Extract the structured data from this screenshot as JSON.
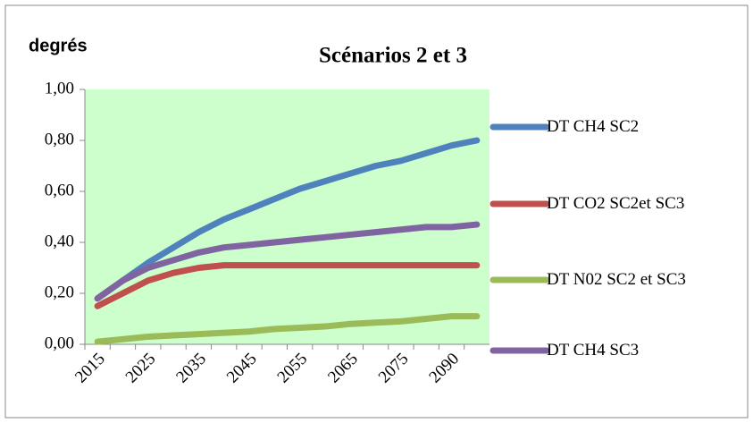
{
  "chart_data": {
    "type": "line",
    "title": "Scénarios 2 et 3",
    "y_label": "degrés",
    "categories": [
      "2015",
      null,
      "2025",
      null,
      "2035",
      null,
      "2045",
      null,
      "2055",
      null,
      "2065",
      null,
      "2075",
      null,
      "2090",
      null
    ],
    "series": [
      {
        "name": "DT CH4 SC2",
        "color": "#4f81bd",
        "values": [
          0.18,
          0.25,
          0.32,
          0.38,
          0.44,
          0.49,
          0.53,
          0.57,
          0.61,
          0.64,
          0.67,
          0.7,
          0.72,
          0.75,
          0.78,
          0.8
        ]
      },
      {
        "name": "DT CO2 SC2et SC3",
        "color": "#c0504d",
        "values": [
          0.15,
          0.2,
          0.25,
          0.28,
          0.3,
          0.31,
          0.31,
          0.31,
          0.31,
          0.31,
          0.31,
          0.31,
          0.31,
          0.31,
          0.31,
          0.31
        ]
      },
      {
        "name": "DT N02 SC2 et SC3",
        "color": "#9bbb59",
        "values": [
          0.01,
          0.02,
          0.03,
          0.035,
          0.04,
          0.045,
          0.05,
          0.06,
          0.065,
          0.07,
          0.08,
          0.085,
          0.09,
          0.1,
          0.11,
          0.11
        ]
      },
      {
        "name": "DT CH4 SC3",
        "color": "#8064a2",
        "values": [
          0.18,
          0.25,
          0.3,
          0.33,
          0.36,
          0.38,
          0.39,
          0.4,
          0.41,
          0.42,
          0.43,
          0.44,
          0.45,
          0.46,
          0.46,
          0.47
        ]
      }
    ],
    "ylim": [
      0,
      1
    ],
    "yticks": [
      {
        "value": 0,
        "label": "0,00"
      },
      {
        "value": 0.2,
        "label": "0,20"
      },
      {
        "value": 0.4,
        "label": "0,40"
      },
      {
        "value": 0.6,
        "label": "0,60"
      },
      {
        "value": 0.8,
        "label": "0,80"
      },
      {
        "value": 1,
        "label": "1,00"
      }
    ],
    "plot_background": "#ccffcc",
    "legend": "right"
  }
}
